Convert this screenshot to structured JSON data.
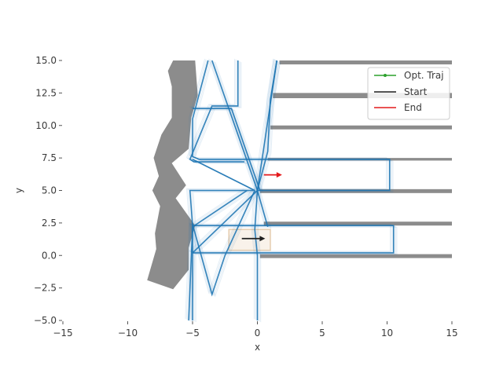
{
  "chart_data": {
    "type": "line",
    "xlabel": "x",
    "ylabel": "y",
    "xlim": [
      -15,
      15
    ],
    "ylim": [
      -5,
      15
    ],
    "grid": false,
    "legend_placement": "top-right",
    "x_ticks": [
      {
        "value": -15,
        "label": "−15"
      },
      {
        "value": -10,
        "label": "−10"
      },
      {
        "value": -5,
        "label": "−5"
      },
      {
        "value": 0,
        "label": "0"
      },
      {
        "value": 5,
        "label": "5"
      },
      {
        "value": 10,
        "label": "10"
      },
      {
        "value": 15,
        "label": "15"
      }
    ],
    "y_ticks": [
      {
        "value": -5,
        "label": "−5.0"
      },
      {
        "value": -2.5,
        "label": "−2.5"
      },
      {
        "value": 0,
        "label": "0.0"
      },
      {
        "value": 2.5,
        "label": "2.5"
      },
      {
        "value": 5,
        "label": "5.0"
      },
      {
        "value": 7.5,
        "label": "7.5"
      },
      {
        "value": 10,
        "label": "10.0"
      },
      {
        "value": 12.5,
        "label": "12.5"
      },
      {
        "value": 15,
        "label": "15.0"
      }
    ],
    "legend": [
      {
        "label": "Opt. Traj",
        "color": "#2ca02c",
        "style": "line-with-dot"
      },
      {
        "label": "Start",
        "color": "#1f1f1f",
        "style": "line"
      },
      {
        "label": "End",
        "color": "#e41a1c",
        "style": "line"
      }
    ],
    "colors": {
      "trajectory": "#1f77b4",
      "obstacle": "#8c8c8c",
      "end_arrow": "#e41a1c",
      "start_arrow": "#1f1f1f",
      "start_box": "#e6cdb0"
    },
    "obstacles": {
      "wall_bars": [
        {
          "x": [
            1.7,
            15
          ],
          "y": [
            14.7,
            15.0
          ]
        },
        {
          "x": [
            1.2,
            15
          ],
          "y": [
            12.1,
            12.5
          ]
        },
        {
          "x": [
            1.0,
            15
          ],
          "y": [
            9.7,
            10.0
          ]
        },
        {
          "x": [
            0.8,
            15
          ],
          "y": [
            7.3,
            7.5
          ]
        },
        {
          "x": [
            0.2,
            15
          ],
          "y": [
            4.8,
            5.1
          ]
        },
        {
          "x": [
            0.5,
            15
          ],
          "y": [
            2.3,
            2.6
          ]
        },
        {
          "x": [
            0.2,
            15
          ],
          "y": [
            -0.2,
            0.1
          ]
        }
      ],
      "left_boundary": [
        [
          -6.5,
          15.0
        ],
        [
          -4.8,
          15.0
        ],
        [
          -4.6,
          12.3
        ],
        [
          -5.1,
          10.6
        ],
        [
          -5.3,
          8.2
        ],
        [
          -6.6,
          7.1
        ],
        [
          -5.5,
          5.4
        ],
        [
          -6.3,
          4.4
        ],
        [
          -4.8,
          2.3
        ],
        [
          -5.3,
          0.6
        ],
        [
          -5.3,
          -1.1
        ],
        [
          -6.5,
          -2.6
        ],
        [
          -8.5,
          -1.9
        ],
        [
          -7.8,
          0.5
        ],
        [
          -7.9,
          1.7
        ],
        [
          -7.5,
          3.8
        ],
        [
          -8.1,
          5.0
        ],
        [
          -7.6,
          6.1
        ],
        [
          -8.0,
          7.5
        ],
        [
          -7.4,
          9.3
        ],
        [
          -6.6,
          10.6
        ],
        [
          -6.6,
          13.0
        ],
        [
          -6.9,
          14.2
        ]
      ]
    },
    "optimal_trajectories": [
      [
        [
          1.5,
          15.0
        ],
        [
          1.0,
          12.0
        ],
        [
          0.8,
          8.0
        ],
        [
          0.0,
          5.0
        ],
        [
          -0.2,
          2.0
        ],
        [
          0.0,
          0.0
        ],
        [
          0.0,
          -5.0
        ]
      ],
      [
        [
          -3.8,
          15.0
        ],
        [
          -5.0,
          10.5
        ],
        [
          -5.0,
          7.6
        ],
        [
          -4.5,
          7.4
        ],
        [
          10.2,
          7.4
        ],
        [
          10.2,
          5.0
        ],
        [
          0.0,
          5.0
        ]
      ],
      [
        [
          -1.5,
          15.0
        ],
        [
          -1.5,
          11.5
        ],
        [
          -3.5,
          11.5
        ],
        [
          -5.2,
          7.4
        ],
        [
          -4.9,
          7.2
        ],
        [
          -1.0,
          7.2
        ]
      ],
      [
        [
          -0.3,
          5.0
        ],
        [
          -5.2,
          5.0
        ],
        [
          -5.0,
          2.3
        ],
        [
          -5.0,
          -5.0
        ]
      ],
      [
        [
          -5.0,
          2.4
        ],
        [
          -3.5,
          -3.0
        ],
        [
          -2.5,
          0.0
        ],
        [
          -0.2,
          5.0
        ]
      ],
      [
        [
          -5.0,
          0.2
        ],
        [
          10.5,
          0.2
        ],
        [
          10.5,
          2.3
        ],
        [
          -5.0,
          2.3
        ]
      ],
      [
        [
          -0.8,
          5.0
        ],
        [
          -5.0,
          2.2
        ],
        [
          -5.3,
          -5.0
        ]
      ],
      [
        [
          0.2,
          5.0
        ],
        [
          -2.0,
          11.3
        ],
        [
          -5.0,
          11.3
        ]
      ],
      [
        [
          0.0,
          5.0
        ],
        [
          -3.5,
          15.0
        ]
      ],
      [
        [
          0.0,
          5.0
        ],
        [
          1.5,
          15.0
        ]
      ],
      [
        [
          0.0,
          5.0
        ],
        [
          -5.0,
          0.2
        ]
      ],
      [
        [
          0.0,
          5.0
        ],
        [
          0.8,
          2.2
        ]
      ],
      [
        [
          -0.2,
          5.0
        ],
        [
          -5.0,
          7.4
        ]
      ]
    ],
    "start_arrow": {
      "from": [
        -1.2,
        1.3
      ],
      "to": [
        0.6,
        1.3
      ]
    },
    "start_region": {
      "x": [
        -2.2,
        1.0
      ],
      "y": [
        0.4,
        2.0
      ]
    },
    "end_arrow": {
      "from": [
        0.5,
        6.2
      ],
      "to": [
        1.9,
        6.2
      ]
    }
  }
}
